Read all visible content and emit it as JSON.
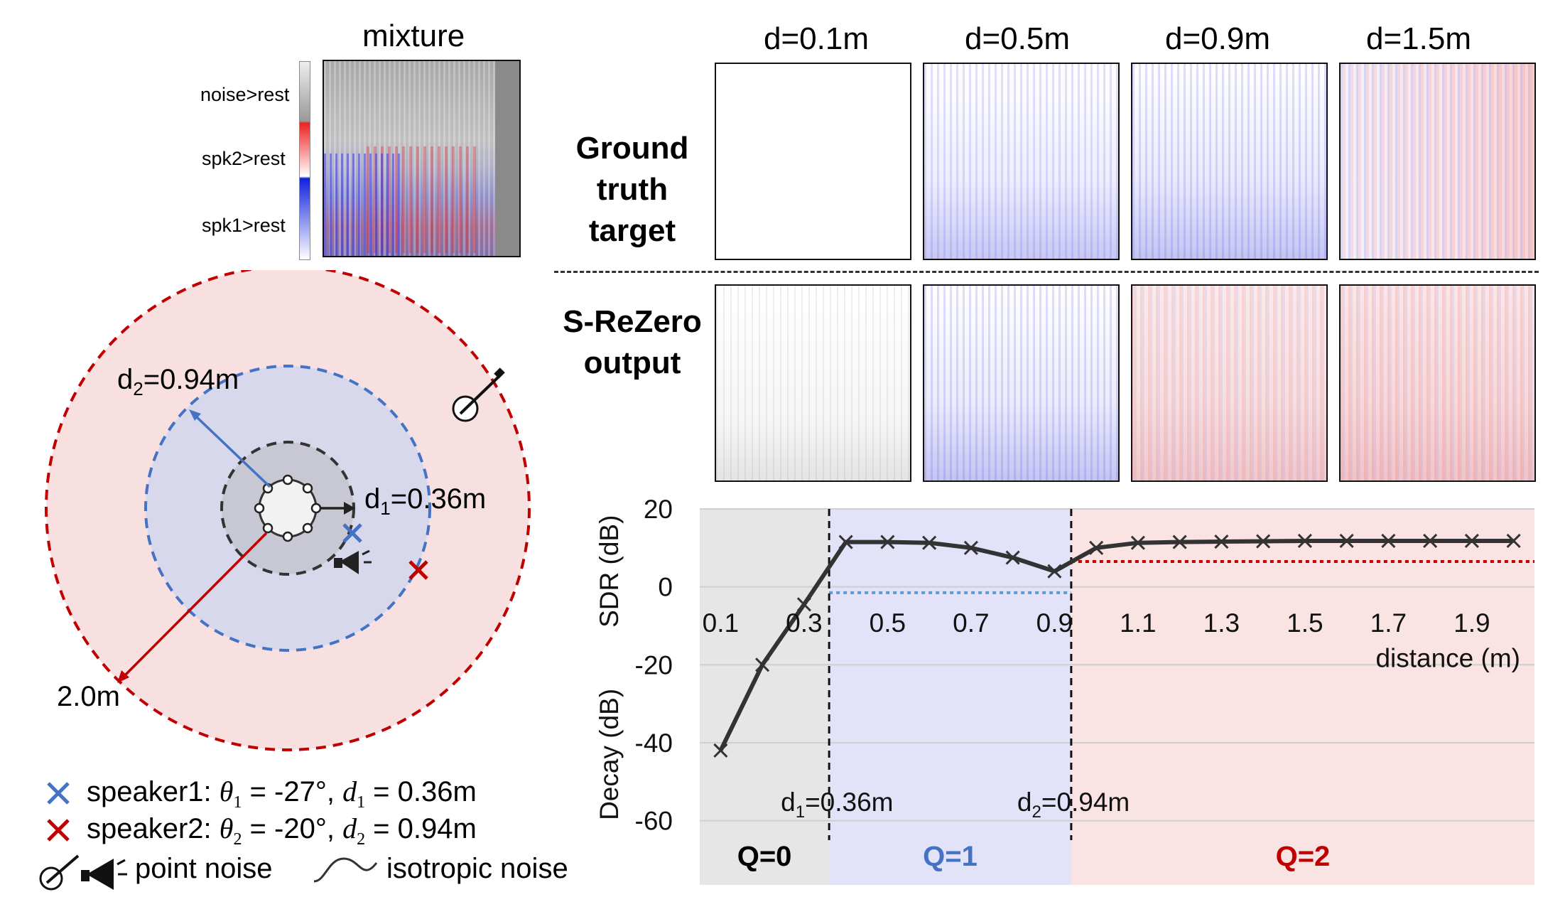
{
  "mixture": {
    "title": "mixture",
    "colorbar_labels": [
      "noise>rest",
      "spk2>rest",
      "spk1>rest"
    ]
  },
  "column_titles": [
    "d=0.1m",
    "d=0.5m",
    "d=0.9m",
    "d=1.5m"
  ],
  "row_labels": {
    "ground_truth": [
      "Ground",
      "truth",
      "target"
    ],
    "output": [
      "S-ReZero",
      "output"
    ]
  },
  "diagram": {
    "d1_label": "d",
    "d1_sub": "1",
    "d1_value": "=0.36m",
    "d2_label": "d",
    "d2_sub": "2",
    "d2_value": "=0.94m",
    "outer_label": "2.0m",
    "colors": {
      "q0": "#d9d9d9",
      "q1": "#c9c9ee",
      "q2": "#f8dcdc",
      "blue": "#4472c4",
      "red": "#c00000"
    }
  },
  "legend": {
    "speaker1_prefix": "speaker1: ",
    "speaker1_theta": "θ",
    "speaker1_theta_sub": "1",
    "speaker1_theta_val": " = -27°,  ",
    "speaker1_d": "d",
    "speaker1_d_sub": "1",
    "speaker1_d_val": " = 0.36m",
    "speaker2_prefix": "speaker2: ",
    "speaker2_theta": "θ",
    "speaker2_theta_sub": "2",
    "speaker2_theta_val": " = -20°,  ",
    "speaker2_d": "d",
    "speaker2_d_sub": "2",
    "speaker2_d_val": " = 0.94m",
    "point_noise": "point noise",
    "isotropic_noise": "isotropic noise"
  },
  "chart_data": {
    "type": "line",
    "x": [
      0.1,
      0.2,
      0.3,
      0.4,
      0.5,
      0.6,
      0.7,
      0.8,
      0.9,
      1.0,
      1.1,
      1.2,
      1.3,
      1.4,
      1.5,
      1.6,
      1.7,
      1.8,
      1.9,
      2.0
    ],
    "values": [
      -42,
      -20,
      -4.5,
      11.5,
      11.5,
      11.3,
      10,
      7.5,
      4,
      10,
      11.3,
      11.5,
      11.6,
      11.7,
      11.8,
      11.8,
      11.8,
      11.8,
      11.8,
      11.8
    ],
    "xlabel": "distance (m)",
    "ylabel_upper": "SDR (dB)",
    "ylabel_lower": "Decay (dB)",
    "ylim": [
      -65,
      20
    ],
    "xlim": [
      0.05,
      2.05
    ],
    "yticks": [
      "20",
      "0",
      "-20",
      "-40",
      "-60"
    ],
    "ytick_values": [
      20,
      0,
      -20,
      -40,
      -60
    ],
    "xticks": [
      "0.1",
      "0.3",
      "0.5",
      "0.7",
      "0.9",
      "1.1",
      "1.3",
      "1.5",
      "1.7",
      "1.9"
    ],
    "xtick_values": [
      0.1,
      0.3,
      0.5,
      0.7,
      0.9,
      1.1,
      1.3,
      1.5,
      1.7,
      1.9
    ],
    "boundaries": [
      0.36,
      0.94
    ],
    "boundary_labels": [
      "d",
      "1",
      "=0.36m",
      "d",
      "2",
      "=0.94m"
    ],
    "reference_lines": [
      {
        "from": 0.36,
        "to": 0.94,
        "y": -1.5,
        "color": "#5b9bd5"
      },
      {
        "from": 0.94,
        "to": 2.05,
        "y": 6.5,
        "color": "#c00000"
      }
    ],
    "regions": [
      "Q=0",
      "Q=1",
      "Q=2"
    ],
    "region_colors": [
      "#e6e6e6",
      "#e2e2f8",
      "#f9e3e3"
    ],
    "region_text_colors": [
      "#000000",
      "#4472c4",
      "#c00000"
    ],
    "grid": true
  }
}
